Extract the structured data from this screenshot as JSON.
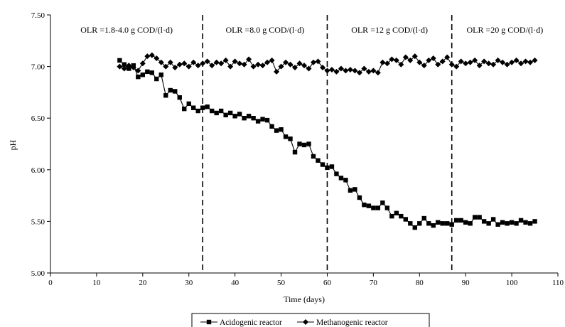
{
  "chart_data": {
    "type": "line",
    "xlabel": "Time (days)",
    "ylabel": "pH",
    "xlim": [
      0,
      110
    ],
    "ylim": [
      5.0,
      7.5
    ],
    "x_ticks": [
      0,
      10,
      20,
      30,
      40,
      50,
      60,
      70,
      80,
      90,
      100,
      110
    ],
    "y_ticks": [
      5.0,
      5.5,
      6.0,
      6.5,
      7.0,
      7.5
    ],
    "x_tick_labels": [
      "0",
      "10",
      "20",
      "30",
      "40",
      "50",
      "60",
      "70",
      "80",
      "90",
      "100",
      "110"
    ],
    "y_tick_labels": [
      "5.00",
      "5.50",
      "6.00",
      "6.50",
      "7.00",
      "7.50"
    ],
    "grid": false,
    "legend_position": "bottom",
    "phase_boundaries": [
      33,
      60,
      87
    ],
    "phases": [
      {
        "label": "OLR =1.8-4.0 g COD/(l·d)",
        "x_start": 0,
        "x_end": 33
      },
      {
        "label": "OLR =8.0 g COD/(l·d)",
        "x_start": 33,
        "x_end": 60
      },
      {
        "label": "OLR =12 g COD/(l·d)",
        "x_start": 60,
        "x_end": 87
      },
      {
        "label": "OLR =20 g COD/(l·d)",
        "x_start": 87,
        "x_end": 110
      }
    ],
    "series": [
      {
        "name": "Acidogenic reactor",
        "marker": "square",
        "x": [
          15,
          16,
          17,
          18,
          19,
          20,
          21,
          22,
          23,
          24,
          25,
          26,
          27,
          28,
          29,
          30,
          31,
          32,
          33,
          34,
          35,
          36,
          37,
          38,
          39,
          40,
          41,
          42,
          43,
          44,
          45,
          46,
          47,
          48,
          49,
          50,
          51,
          52,
          53,
          54,
          55,
          56,
          57,
          58,
          59,
          60,
          61,
          62,
          63,
          64,
          65,
          66,
          67,
          68,
          69,
          70,
          71,
          72,
          73,
          74,
          75,
          76,
          77,
          78,
          79,
          80,
          81,
          82,
          83,
          84,
          85,
          86,
          87,
          88,
          89,
          90,
          91,
          92,
          93,
          94,
          95,
          96,
          97,
          98,
          99,
          100,
          101,
          102,
          103,
          104,
          105
        ],
        "y": [
          7.06,
          7.02,
          6.98,
          7.01,
          6.9,
          6.92,
          6.95,
          6.94,
          6.88,
          6.92,
          6.72,
          6.77,
          6.76,
          6.7,
          6.59,
          6.64,
          6.6,
          6.57,
          6.6,
          6.61,
          6.57,
          6.55,
          6.57,
          6.53,
          6.55,
          6.52,
          6.54,
          6.5,
          6.52,
          6.5,
          6.47,
          6.49,
          6.48,
          6.42,
          6.38,
          6.39,
          6.32,
          6.3,
          6.17,
          6.25,
          6.24,
          6.25,
          6.13,
          6.09,
          6.05,
          6.02,
          6.03,
          5.96,
          5.92,
          5.9,
          5.8,
          5.81,
          5.73,
          5.66,
          5.65,
          5.63,
          5.63,
          5.68,
          5.63,
          5.55,
          5.58,
          5.55,
          5.52,
          5.48,
          5.44,
          5.48,
          5.53,
          5.48,
          5.46,
          5.49,
          5.48,
          5.48,
          5.47,
          5.51,
          5.51,
          5.49,
          5.48,
          5.54,
          5.54,
          5.5,
          5.48,
          5.52,
          5.47,
          5.49,
          5.48,
          5.49,
          5.48,
          5.51,
          5.49,
          5.48,
          5.5
        ]
      },
      {
        "name": "Methanogenic reactor",
        "marker": "diamond",
        "x": [
          15,
          16,
          17,
          18,
          19,
          20,
          21,
          22,
          23,
          24,
          25,
          26,
          27,
          28,
          29,
          30,
          31,
          32,
          33,
          34,
          35,
          36,
          37,
          38,
          39,
          40,
          41,
          42,
          43,
          44,
          45,
          46,
          47,
          48,
          49,
          50,
          51,
          52,
          53,
          54,
          55,
          56,
          57,
          58,
          59,
          60,
          61,
          62,
          63,
          64,
          65,
          66,
          67,
          68,
          69,
          70,
          71,
          72,
          73,
          74,
          75,
          76,
          77,
          78,
          79,
          80,
          81,
          82,
          83,
          84,
          85,
          86,
          87,
          88,
          89,
          90,
          91,
          92,
          93,
          94,
          95,
          96,
          97,
          98,
          99,
          100,
          101,
          102,
          103,
          104,
          105
        ],
        "y": [
          7.0,
          6.98,
          7.01,
          6.99,
          6.96,
          7.03,
          7.1,
          7.11,
          7.08,
          7.04,
          7.0,
          7.04,
          6.99,
          7.02,
          7.03,
          7.0,
          7.04,
          7.01,
          7.03,
          7.05,
          7.01,
          7.04,
          7.03,
          7.06,
          7.0,
          7.05,
          7.03,
          7.02,
          7.07,
          7.0,
          7.02,
          7.01,
          7.04,
          7.06,
          6.95,
          7.0,
          7.04,
          7.02,
          6.99,
          7.03,
          7.01,
          6.98,
          7.04,
          7.05,
          6.99,
          6.96,
          6.97,
          6.95,
          6.98,
          6.96,
          6.97,
          6.96,
          6.94,
          6.98,
          6.95,
          6.96,
          6.94,
          7.04,
          7.03,
          7.07,
          7.06,
          7.02,
          7.09,
          7.06,
          7.1,
          7.04,
          7.01,
          7.06,
          7.08,
          7.02,
          7.05,
          7.09,
          7.02,
          7.0,
          7.05,
          7.03,
          7.04,
          7.06,
          7.01,
          7.05,
          7.03,
          7.02,
          7.06,
          7.04,
          7.02,
          7.04,
          7.06,
          7.03,
          7.05,
          7.04,
          7.06
        ]
      }
    ]
  }
}
